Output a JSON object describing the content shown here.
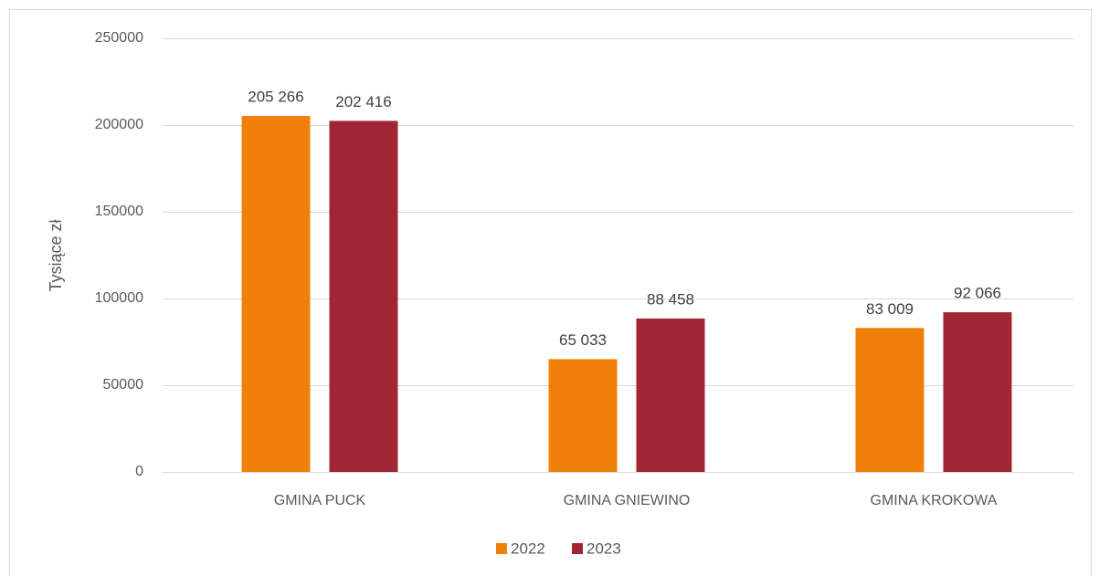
{
  "chart_data": {
    "type": "bar",
    "y_axis_label": "Tysiące zł",
    "categories": [
      "GMINA PUCK",
      "GMINA GNIEWINO",
      "GMINA KROKOWA"
    ],
    "series": [
      {
        "name": "2022",
        "color": "#f0800a",
        "values": [
          205266,
          65033,
          83009
        ],
        "value_labels": [
          "205 266",
          "65 033",
          "83 009"
        ]
      },
      {
        "name": "2023",
        "color": "#a02636",
        "values": [
          202416,
          88458,
          92066
        ],
        "value_labels": [
          "202 416",
          "88 458",
          "92 066"
        ]
      }
    ],
    "ylim": [
      0,
      250000
    ],
    "yticks": [
      0,
      50000,
      100000,
      150000,
      200000,
      250000
    ],
    "grid": true,
    "legend": "bottom"
  }
}
